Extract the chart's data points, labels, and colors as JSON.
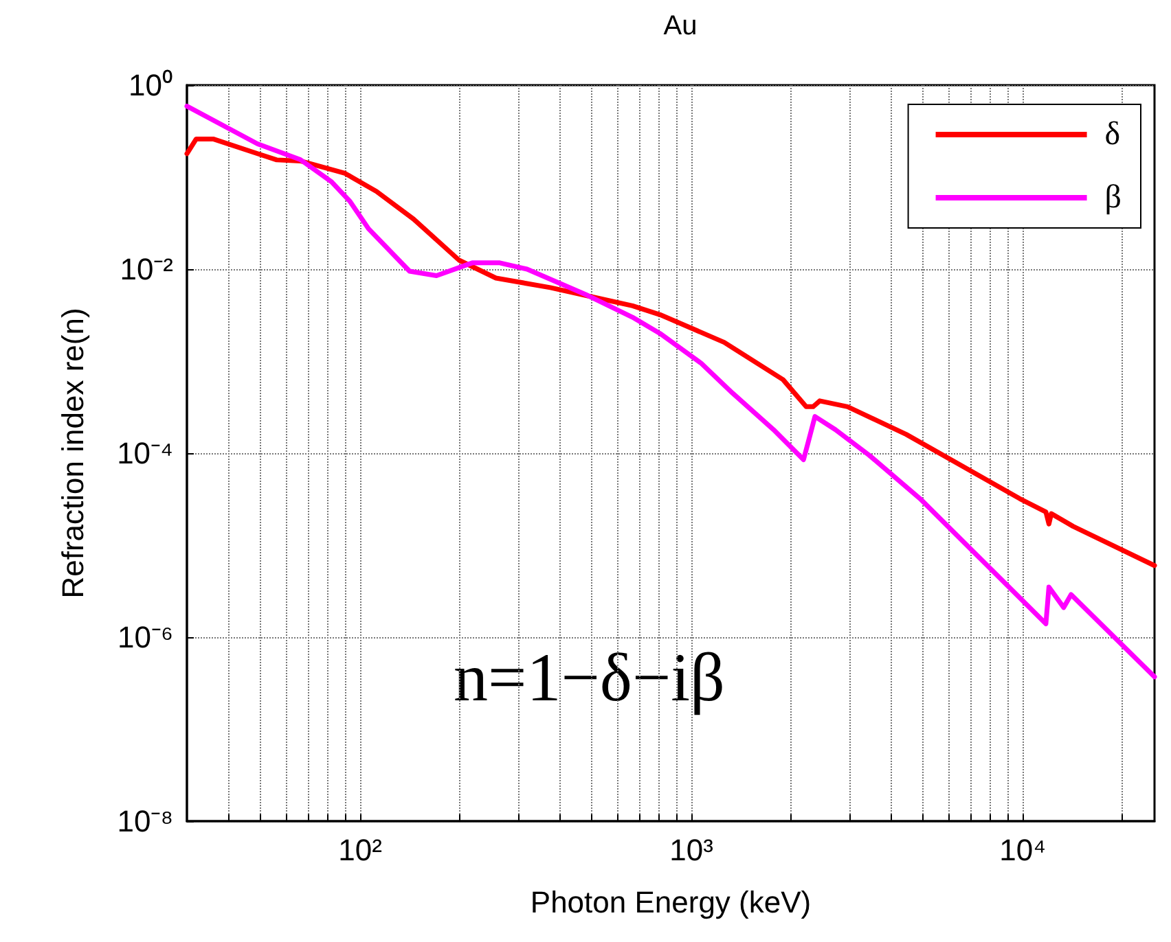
{
  "chart_data": {
    "type": "line",
    "title": "Au",
    "xlabel": "Photon Energy (keV)",
    "ylabel": "Refraction index re(n)",
    "log": "xy",
    "grid": true,
    "legend": "top right",
    "marker": "none",
    "line_style": "solid",
    "xlim": [
      30,
      25000
    ],
    "ylim": [
      1e-08,
      1
    ],
    "xticks": [
      {
        "value": 40,
        "label": null
      },
      {
        "value": 50,
        "label": null
      },
      {
        "value": 60,
        "label": null
      },
      {
        "value": 70,
        "label": null
      },
      {
        "value": 80,
        "label": null
      },
      {
        "value": 90,
        "label": null
      },
      {
        "value": 100,
        "label": "10²"
      },
      {
        "value": 200,
        "label": null
      },
      {
        "value": 300,
        "label": null
      },
      {
        "value": 400,
        "label": null
      },
      {
        "value": 500,
        "label": null
      },
      {
        "value": 600,
        "label": null
      },
      {
        "value": 700,
        "label": null
      },
      {
        "value": 800,
        "label": null
      },
      {
        "value": 900,
        "label": null
      },
      {
        "value": 1000,
        "label": "10³"
      },
      {
        "value": 2000,
        "label": null
      },
      {
        "value": 3000,
        "label": null
      },
      {
        "value": 4000,
        "label": null
      },
      {
        "value": 5000,
        "label": null
      },
      {
        "value": 6000,
        "label": null
      },
      {
        "value": 7000,
        "label": null
      },
      {
        "value": 8000,
        "label": null
      },
      {
        "value": 9000,
        "label": null
      },
      {
        "value": 10000,
        "label": "10⁴"
      },
      {
        "value": 20000,
        "label": null
      }
    ],
    "yticks": [
      {
        "value": 1e-08,
        "label": "10⁻⁸"
      },
      {
        "value": 1e-06,
        "label": "10⁻⁶"
      },
      {
        "value": 0.0001,
        "label": "10⁻⁴"
      },
      {
        "value": 0.01,
        "label": "10⁻²"
      },
      {
        "value": 1,
        "label": "10⁰"
      }
    ],
    "annotations": [
      "n=1−δ−iβ"
    ],
    "series": [
      {
        "name": "δ",
        "color": "#ff0000",
        "x": [
          30,
          32,
          36,
          49,
          56,
          66,
          90,
          112,
          145,
          199,
          257,
          375,
          514,
          664,
          804,
          1256,
          1890,
          2220,
          2330,
          2440,
          2960,
          4450,
          9800,
          11750,
          12000,
          12200,
          14200,
          25000
        ],
        "values": [
          0.18,
          0.26,
          0.26,
          0.18,
          0.154,
          0.15,
          0.11,
          0.07,
          0.035,
          0.0125,
          0.008,
          0.0063,
          0.0049,
          0.004,
          0.0032,
          0.0016,
          0.00063,
          0.00032,
          0.00032,
          0.00037,
          0.00032,
          0.00016,
          3.2e-05,
          2.3e-05,
          1.7e-05,
          2.2e-05,
          1.6e-05,
          6e-06
        ]
      },
      {
        "name": "β",
        "color": "#ff00ff",
        "x": [
          30,
          49,
          66,
          82,
          93,
          106,
          141,
          170,
          218,
          264,
          319,
          485,
          664,
          804,
          1070,
          1330,
          1770,
          2180,
          2250,
          2360,
          2720,
          3440,
          4900,
          11750,
          12000,
          13300,
          14000,
          25000
        ],
        "values": [
          0.59,
          0.23,
          0.155,
          0.089,
          0.055,
          0.0275,
          0.0095,
          0.0085,
          0.0117,
          0.0117,
          0.01,
          0.0052,
          0.003,
          0.002,
          0.00095,
          0.00045,
          0.00018,
          8.5e-05,
          0.00013,
          0.00025,
          0.00018,
          9.5e-05,
          3.2e-05,
          1.4e-06,
          3.5e-06,
          2.1e-06,
          2.9e-06,
          3.7e-07
        ]
      }
    ]
  }
}
